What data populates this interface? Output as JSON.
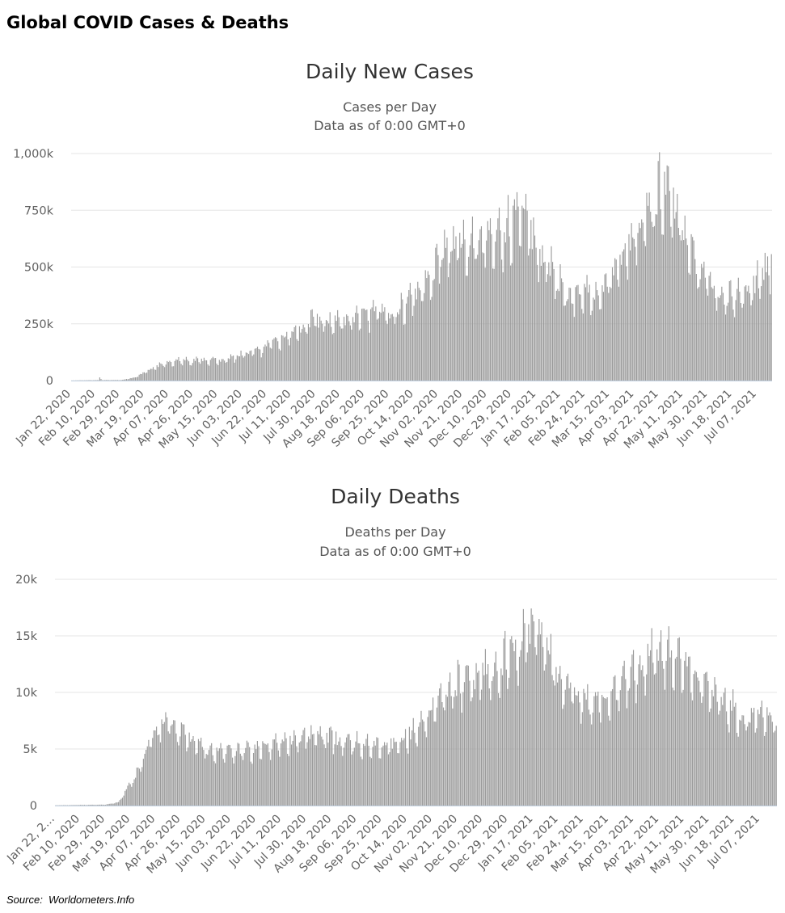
{
  "page": {
    "title": "Global COVID Cases & Deaths",
    "source": "Source:  Worldometers.Info"
  },
  "colors": {
    "bar": "#9a9a9a",
    "grid": "#e6e6e6",
    "axis": "#c0cfe0"
  },
  "chart_data": [
    {
      "type": "bar",
      "title": "Daily New Cases",
      "subtitle": [
        "Cases per Day",
        "Data as of 0:00 GMT+0"
      ],
      "ylim": [
        0,
        1000000
      ],
      "yticks": [
        {
          "value": 0,
          "label": "0"
        },
        {
          "value": 250000,
          "label": "250k"
        },
        {
          "value": 500000,
          "label": "500k"
        },
        {
          "value": 750000,
          "label": "750k"
        },
        {
          "value": 1000000,
          "label": "1,000k"
        }
      ],
      "date_range": [
        "2020-01-22",
        "2021-07-25"
      ],
      "xticks": [
        "Jan 22, 2020",
        "Feb 10, 2020",
        "Feb 29, 2020",
        "Mar 19, 2020",
        "Apr 07, 2020",
        "Apr 26, 2020",
        "May 15, 2020",
        "Jun 03, 2020",
        "Jun 22, 2020",
        "Jul 11, 2020",
        "Jul 30, 2020",
        "Aug 18, 2020",
        "Sep 06, 2020",
        "Sep 25, 2020",
        "Oct 14, 2020",
        "Nov 02, 2020",
        "Nov 21, 2020",
        "Dec 10, 2020",
        "Dec 29, 2020",
        "Jan 17, 2021",
        "Feb 05, 2021",
        "Feb 24, 2021",
        "Mar 15, 2021",
        "Apr 03, 2021",
        "Apr 22, 2021",
        "May 11, 2021",
        "May 30, 2021",
        "Jun 18, 2021",
        "Jul 07, 2021"
      ],
      "trend": [
        [
          "2020-01-22",
          500
        ],
        [
          "2020-02-12",
          2000
        ],
        [
          "2020-02-13",
          15000
        ],
        [
          "2020-02-15",
          2000
        ],
        [
          "2020-03-01",
          2000
        ],
        [
          "2020-03-12",
          15000
        ],
        [
          "2020-04-01",
          70000
        ],
        [
          "2020-04-10",
          85000
        ],
        [
          "2020-05-20",
          92000
        ],
        [
          "2020-06-20",
          140000
        ],
        [
          "2020-07-10",
          200000
        ],
        [
          "2020-07-30",
          265000
        ],
        [
          "2020-08-20",
          260000
        ],
        [
          "2020-09-15",
          295000
        ],
        [
          "2020-10-05",
          310000
        ],
        [
          "2020-10-25",
          430000
        ],
        [
          "2020-11-10",
          580000
        ],
        [
          "2020-11-25",
          600000
        ],
        [
          "2020-12-10",
          630000
        ],
        [
          "2020-12-25",
          640000
        ],
        [
          "2021-01-08",
          760000
        ],
        [
          "2021-01-25",
          560000
        ],
        [
          "2021-02-15",
          380000
        ],
        [
          "2021-03-05",
          390000
        ],
        [
          "2021-03-20",
          450000
        ],
        [
          "2021-04-10",
          670000
        ],
        [
          "2021-04-30",
          850000
        ],
        [
          "2021-05-10",
          780000
        ],
        [
          "2021-05-25",
          550000
        ],
        [
          "2021-06-10",
          400000
        ],
        [
          "2021-06-25",
          360000
        ],
        [
          "2021-07-10",
          420000
        ],
        [
          "2021-07-25",
          520000
        ]
      ],
      "noise": 0.12
    },
    {
      "type": "bar",
      "title": "Daily Deaths",
      "subtitle": [
        "Deaths per Day",
        "Data as of 0:00 GMT+0"
      ],
      "ylim": [
        0,
        20000
      ],
      "yticks": [
        {
          "value": 0,
          "label": "0"
        },
        {
          "value": 5000,
          "label": "5k"
        },
        {
          "value": 10000,
          "label": "10k"
        },
        {
          "value": 15000,
          "label": "15k"
        },
        {
          "value": 20000,
          "label": "20k"
        }
      ],
      "date_range": [
        "2020-01-22",
        "2021-07-25"
      ],
      "xticks": [
        "Jan 22, 2…",
        "Feb 10, 2020",
        "Feb 29, 2020",
        "Mar 19, 2020",
        "Apr 07, 2020",
        "Apr 26, 2020",
        "May 15, 2020",
        "Jun 03, 2020",
        "Jun 22, 2020",
        "Jul 11, 2020",
        "Jul 30, 2020",
        "Aug 18, 2020",
        "Sep 06, 2020",
        "Sep 25, 2020",
        "Oct 14, 2020",
        "Nov 02, 2020",
        "Nov 21, 2020",
        "Dec 10, 2020",
        "Dec 29, 2020",
        "Jan 17, 2021",
        "Feb 05, 2021",
        "Feb 24, 2021",
        "Mar 15, 2021",
        "Apr 03, 2021",
        "Apr 22, 2021",
        "May 11, 2021",
        "May 30, 2021",
        "Jun 18, 2021",
        "Jul 07, 2021"
      ],
      "trend": [
        [
          "2020-01-22",
          20
        ],
        [
          "2020-02-29",
          80
        ],
        [
          "2020-03-10",
          300
        ],
        [
          "2020-03-25",
          3000
        ],
        [
          "2020-04-05",
          6500
        ],
        [
          "2020-04-17",
          7600
        ],
        [
          "2020-05-01",
          6300
        ],
        [
          "2020-05-20",
          4800
        ],
        [
          "2020-06-15",
          4900
        ],
        [
          "2020-07-10",
          5500
        ],
        [
          "2020-07-30",
          6300
        ],
        [
          "2020-08-20",
          6000
        ],
        [
          "2020-09-15",
          5400
        ],
        [
          "2020-10-05",
          5500
        ],
        [
          "2020-10-25",
          6700
        ],
        [
          "2020-11-10",
          9500
        ],
        [
          "2020-11-25",
          11000
        ],
        [
          "2020-12-10",
          11500
        ],
        [
          "2020-12-25",
          12500
        ],
        [
          "2021-01-10",
          14500
        ],
        [
          "2021-01-22",
          15600
        ],
        [
          "2021-02-05",
          12600
        ],
        [
          "2021-02-24",
          9500
        ],
        [
          "2021-03-15",
          9000
        ],
        [
          "2021-04-05",
          11500
        ],
        [
          "2021-04-25",
          13800
        ],
        [
          "2021-05-05",
          13400
        ],
        [
          "2021-05-20",
          12000
        ],
        [
          "2021-06-10",
          9500
        ],
        [
          "2021-06-30",
          8000
        ],
        [
          "2021-07-25",
          7800
        ]
      ],
      "noise": 0.11
    }
  ]
}
